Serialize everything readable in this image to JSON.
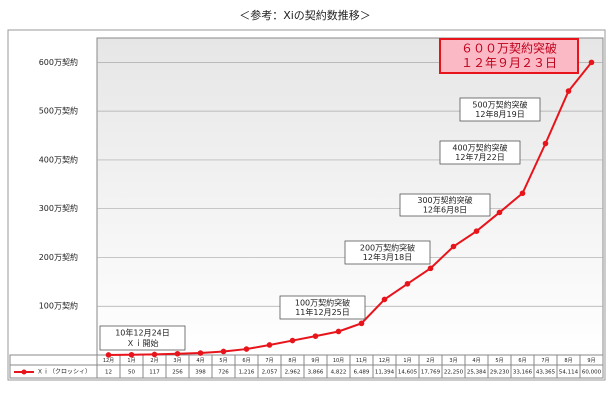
{
  "chart_data": {
    "type": "line",
    "title": "＜参考：Xiの契約数推移＞",
    "categories": [
      "12月",
      "1月",
      "2月",
      "3月",
      "4月",
      "5月",
      "6月",
      "7月",
      "8月",
      "9月",
      "10月",
      "11月",
      "12月",
      "1月",
      "2月",
      "3月",
      "4月",
      "5月",
      "6月",
      "7月",
      "8月",
      "9月"
    ],
    "series": [
      {
        "name": "Ｘｉ（クロッシィ）",
        "color": "#e8141b",
        "values": [
          12,
          50,
          117,
          256,
          398,
          726,
          1216,
          2057,
          2962,
          3866,
          4822,
          6489,
          11394,
          14605,
          17769,
          22250,
          25384,
          29230,
          33166,
          43365,
          54114,
          60000
        ],
        "value_labels": [
          "12",
          "50",
          "117",
          "256",
          "398",
          "726",
          "1,216",
          "2,057",
          "2,962",
          "3,866",
          "4,822",
          "6,489",
          "11,394",
          "14,605",
          "17,769",
          "22,250",
          "25,384",
          "29,230",
          "33,166",
          "43,365",
          "54,114",
          "60,000"
        ]
      }
    ],
    "ylim": [
      0,
      65000
    ],
    "yticks": [
      {
        "value": 10000,
        "label": "100万契約"
      },
      {
        "value": 20000,
        "label": "200万契約"
      },
      {
        "value": 30000,
        "label": "300万契約"
      },
      {
        "value": 40000,
        "label": "400万契約"
      },
      {
        "value": 50000,
        "label": "500万契約"
      },
      {
        "value": 60000,
        "label": "600万契約"
      }
    ],
    "grid": true,
    "annotations": [
      {
        "lines": [
          "10年12月24日",
          "Ｘｉ開始"
        ]
      },
      {
        "lines": [
          "100万契約突破",
          "11年12月25日"
        ]
      },
      {
        "lines": [
          "200万契約突破",
          "12年3月18日"
        ]
      },
      {
        "lines": [
          "300万契約突破",
          "12年6月8日"
        ]
      },
      {
        "lines": [
          "400万契約突破",
          "12年7月22日"
        ]
      },
      {
        "lines": [
          "500万契約突破",
          "12年8月19日"
        ]
      },
      {
        "lines": [
          "６００万契約突破",
          "１２年９月２３日"
        ]
      }
    ]
  }
}
